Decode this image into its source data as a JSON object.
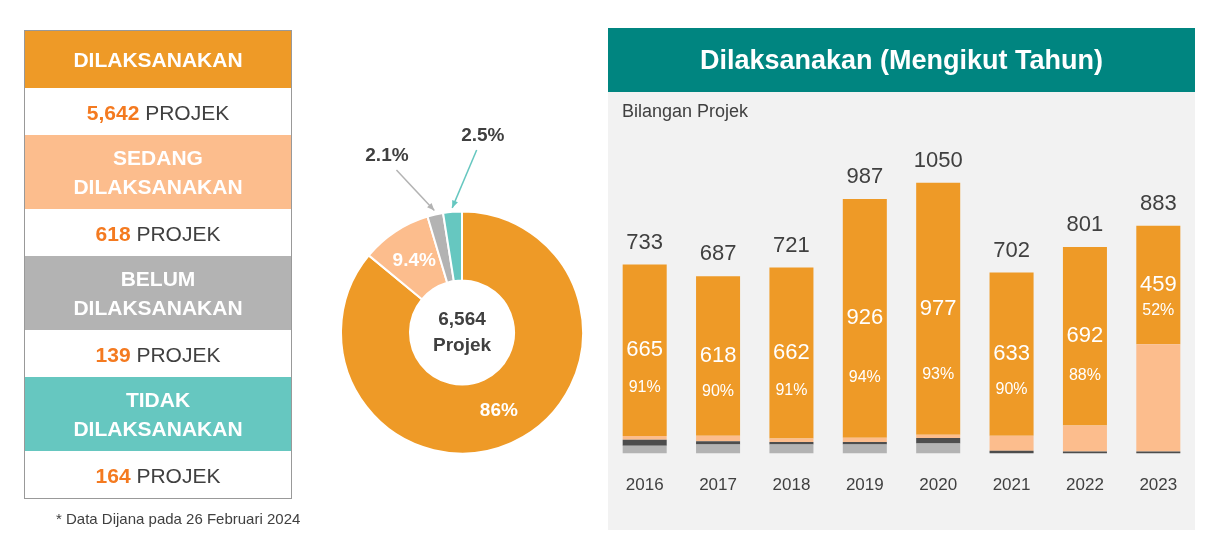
{
  "chart_data": [
    {
      "type": "other",
      "categories": [
        "DILAKSANAKAN",
        "SEDANG DILAKSANAKAN",
        "BELUM DILAKSANAKAN",
        "TIDAK DILAKSANAKAN"
      ],
      "value_labels": [
        "5,642 PROJEK",
        "618 PROJEK",
        "139 PROJEK",
        "164 PROJEK"
      ],
      "colors": [
        "#ee9a27",
        "#fcbd8d",
        "#b3b3b3",
        "#66c7c0"
      ],
      "annotations": [
        "* Data Dijana pada 26 Februari 2024"
      ]
    },
    {
      "type": "donut",
      "categories": [
        null,
        null,
        null,
        null
      ],
      "values": [
        86,
        9.4,
        2.1,
        2.5
      ],
      "colors": [
        "#ee9a27",
        "#fcbd8d",
        "#b3b3b3",
        "#66c7c0"
      ],
      "value_labels": [
        "86%",
        "9.4%",
        "2.1%",
        "2.5%"
      ],
      "annotations": [
        "6,564 Projek"
      ]
    },
    {
      "type": "bar",
      "title": "Dilaksanakan (Mengikut Tahun)",
      "ylabel": "Bilangan Projek",
      "categories": [
        "2016",
        "2017",
        "2018",
        "2019",
        "2020",
        "2021",
        "2022",
        "2023"
      ],
      "stacked": true,
      "tick_labels": "x",
      "series": [
        {
          "color": "#b3b3b3",
          "values": [
            30,
            35,
            35,
            35,
            39,
            null,
            null,
            null
          ]
        },
        {
          "color": "#4d4d4d",
          "values": [
            24,
            13,
            10,
            10,
            21,
            11,
            8,
            8
          ]
        },
        {
          "color": "#fcbd8d",
          "values": [
            14,
            21,
            14,
            16,
            13,
            58,
            101,
            416
          ]
        },
        {
          "color": "#ee9a27",
          "values": [
            665,
            618,
            662,
            926,
            977,
            633,
            692,
            459
          ],
          "value_labels": [
            "665",
            "618",
            "662",
            "926",
            "977",
            "633",
            "692",
            "459"
          ]
        }
      ],
      "totals": [
        "733",
        "687",
        "721",
        "987",
        "1050",
        "702",
        "801",
        "883"
      ],
      "annotations": [
        "91%",
        "90%",
        "91%",
        "94%",
        "93%",
        "90%",
        "88%",
        "52%"
      ]
    }
  ]
}
